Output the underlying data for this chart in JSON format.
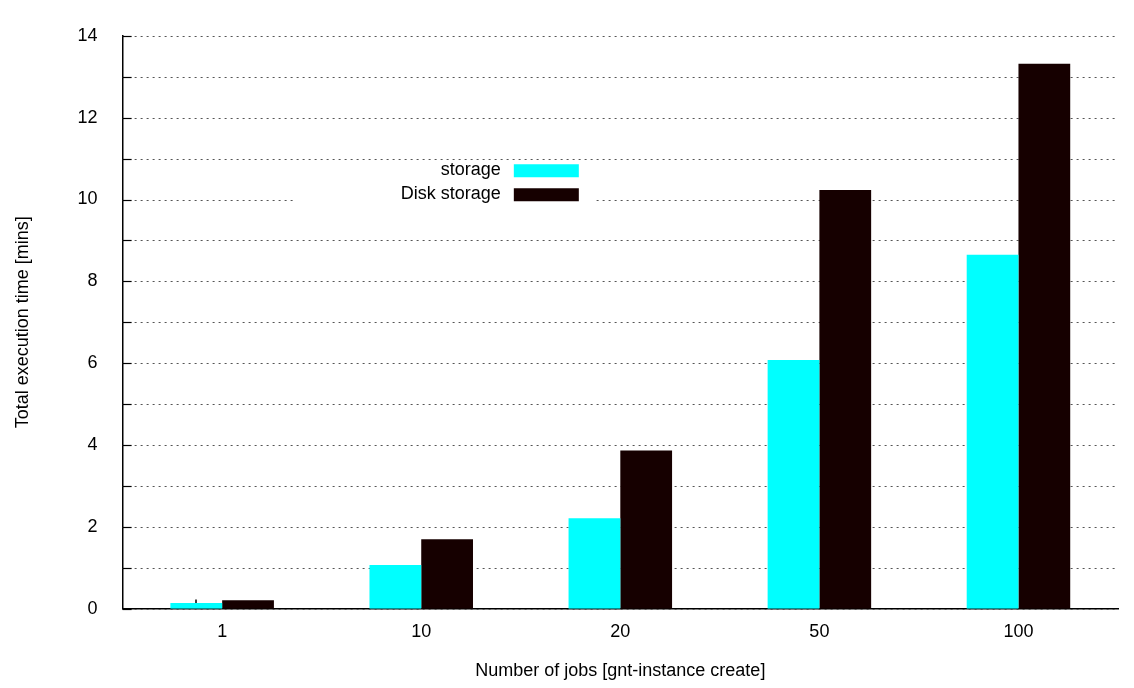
{
  "chart_data": {
    "type": "bar",
    "xlabel": "Number of jobs [gnt-instance create]",
    "ylabel": "Total execution time [mins]",
    "categories": [
      "1",
      "10",
      "20",
      "50",
      "100"
    ],
    "series": [
      {
        "name": "storage",
        "color": "#00ffff",
        "values": [
          0.14,
          1.07,
          2.21,
          6.08,
          8.65
        ],
        "errors": [
          [
            0.14,
            0.23
          ],
          null,
          null,
          null,
          null
        ]
      },
      {
        "name": "Disk storage",
        "color": "#160000",
        "values": [
          0.21,
          1.7,
          3.87,
          10.23,
          13.32
        ]
      }
    ],
    "ylim": [
      0,
      14
    ],
    "yticks": [
      0,
      {
        "value": 1,
        "label": null
      },
      2,
      {
        "value": 3,
        "label": null
      },
      4,
      {
        "value": 5,
        "label": null
      },
      6,
      {
        "value": 7,
        "label": null
      },
      8,
      {
        "value": 9,
        "label": null
      },
      10,
      {
        "value": 11,
        "label": null
      },
      12,
      {
        "value": 13,
        "label": null
      },
      14
    ],
    "grid": "y",
    "legend": "top left"
  }
}
